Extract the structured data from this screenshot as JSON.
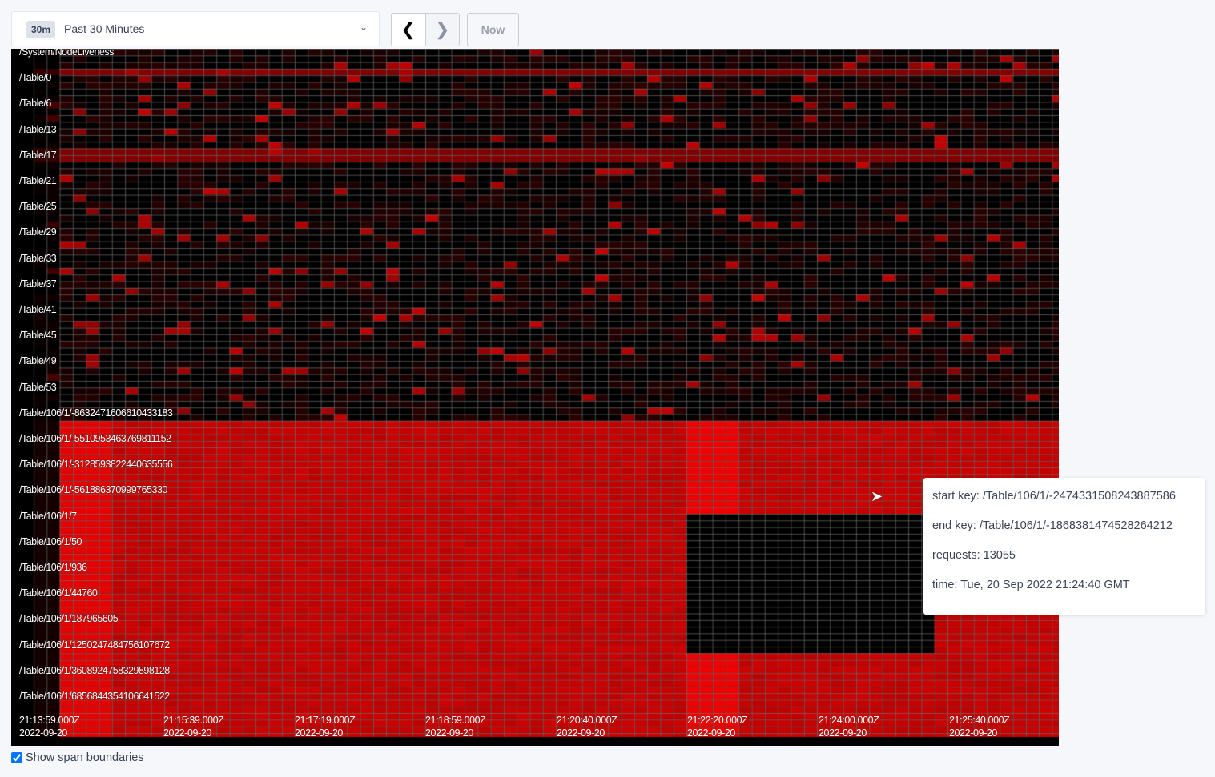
{
  "time_picker": {
    "badge": "30m",
    "label": "Past 30 Minutes",
    "chevron_icon": "chevron-down-icon"
  },
  "nav": {
    "prev_icon": "chevron-left-icon",
    "next_icon": "chevron-right-icon",
    "now_label": "Now"
  },
  "heatmap": {
    "key_labels": [
      "/System/NodeLiveness",
      "/Table/0",
      "/Table/6",
      "/Table/13",
      "/Table/17",
      "/Table/21",
      "/Table/25",
      "/Table/29",
      "/Table/33",
      "/Table/37",
      "/Table/41",
      "/Table/45",
      "/Table/49",
      "/Table/53",
      "/Table/106/1/-8632471606610433183",
      "/Table/106/1/-5510953463769811152",
      "/Table/106/1/-3128593822440635556",
      "/Table/106/1/-561886370999765330",
      "/Table/106/1/7",
      "/Table/106/1/50",
      "/Table/106/1/936",
      "/Table/106/1/44760",
      "/Table/106/1/187965605",
      "/Table/106/1/1250247484756107672",
      "/Table/106/1/3608924758329898128",
      "/Table/106/1/6856844354106641522"
    ],
    "time_labels": [
      {
        "time": "21:13:59.000Z",
        "date": "2022-09-20"
      },
      {
        "time": "21:15:39.000Z",
        "date": "2022-09-20"
      },
      {
        "time": "21:17:19.000Z",
        "date": "2022-09-20"
      },
      {
        "time": "21:18:59.000Z",
        "date": "2022-09-20"
      },
      {
        "time": "21:20:40.000Z",
        "date": "2022-09-20"
      },
      {
        "time": "21:22:20.000Z",
        "date": "2022-09-20"
      },
      {
        "time": "21:24:00.000Z",
        "date": "2022-09-20"
      },
      {
        "time": "21:25:40.000Z",
        "date": "2022-09-20"
      }
    ],
    "colors": {
      "background": "#000000",
      "hot": "#ff0000",
      "grid": "#666666"
    }
  },
  "tooltip": {
    "start_key": "start key: /Table/106/1/-2474331508243887586",
    "end_key": "end key: /Table/106/1/-1868381474528264212",
    "requests": "requests: 13055",
    "time": "time: Tue, 20 Sep 2022 21:24:40 GMT"
  },
  "show_span_boundaries": {
    "label": "Show span boundaries",
    "checked": true
  }
}
